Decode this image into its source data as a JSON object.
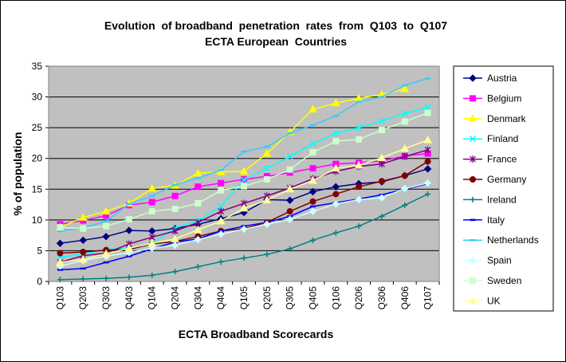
{
  "chart_data": {
    "type": "line",
    "title_line1": "Evolution  of broadband  penetration  rates  from  Q103  to  Q107",
    "title_line2": "ECTA European  Countries",
    "xlabel": "ECTA Broadband Scorecards",
    "ylabel": "% of population",
    "ylim": [
      0,
      35
    ],
    "yticks": [
      0,
      5,
      10,
      15,
      20,
      25,
      30,
      35
    ],
    "grid": "horizontal",
    "plot_background": "#c0c0c0",
    "legend_placement": "right",
    "categories": [
      "Q103",
      "Q203",
      "Q303",
      "Q403",
      "Q104",
      "Q204",
      "Q304",
      "Q404",
      "Q105",
      "Q205",
      "Q305",
      "Q405",
      "Q106",
      "Q206",
      "Q306",
      "Q406",
      "Q107"
    ],
    "series": [
      {
        "name": "Austria",
        "color": "#000080",
        "marker": "diamond",
        "values": [
          6.2,
          6.7,
          7.3,
          8.3,
          8.2,
          8.6,
          9.3,
          10.2,
          11.2,
          13.3,
          13.2,
          14.6,
          15.4,
          15.9,
          16.2,
          17.2,
          18.3
        ]
      },
      {
        "name": "Belgium",
        "color": "#ff00ff",
        "marker": "square",
        "values": [
          9.3,
          9.9,
          10.7,
          12.4,
          12.9,
          13.9,
          15.4,
          16.0,
          16.6,
          17.1,
          17.7,
          18.4,
          19.1,
          19.3,
          19.6,
          20.4,
          20.8
        ]
      },
      {
        "name": "Denmark",
        "color": "#ffff00",
        "marker": "triangle",
        "values": [
          8.8,
          10.4,
          11.4,
          12.7,
          15.1,
          15.6,
          17.6,
          17.8,
          17.9,
          20.8,
          24.3,
          28.0,
          29.0,
          29.8,
          30.4,
          31.3,
          null
        ]
      },
      {
        "name": "Finland",
        "color": "#00ffff",
        "marker": "x",
        "values": [
          3.9,
          4.5,
          5.2,
          5.5,
          6.2,
          8.7,
          9.9,
          12.2,
          16.5,
          18.4,
          20.3,
          22.4,
          24.1,
          25.0,
          26.1,
          27.3,
          28.3
        ]
      },
      {
        "name": "France",
        "color": "#800080",
        "marker": "star",
        "values": [
          3.1,
          4.2,
          4.6,
          6.1,
          7.2,
          8.2,
          9.6,
          11.4,
          12.7,
          13.9,
          15.2,
          16.7,
          17.9,
          18.7,
          19.1,
          20.3,
          21.4
        ]
      },
      {
        "name": "Germany",
        "color": "#800000",
        "marker": "circle",
        "values": [
          4.6,
          4.8,
          5.1,
          5.2,
          6.1,
          6.5,
          7.3,
          8.2,
          8.6,
          9.6,
          11.4,
          13.0,
          14.2,
          15.4,
          16.3,
          17.2,
          19.5
        ]
      },
      {
        "name": "Ireland",
        "color": "#008080",
        "marker": "plus",
        "values": [
          0.3,
          0.4,
          0.5,
          0.7,
          1.0,
          1.6,
          2.4,
          3.2,
          3.8,
          4.4,
          5.3,
          6.7,
          7.9,
          9.0,
          10.6,
          12.4,
          14.2
        ]
      },
      {
        "name": "Italy",
        "color": "#0000ff",
        "marker": "dash",
        "values": [
          1.9,
          2.1,
          3.1,
          4.1,
          5.3,
          6.4,
          6.9,
          8.2,
          9.0,
          9.6,
          10.6,
          12.2,
          12.8,
          13.4,
          14.1,
          15.0,
          15.9
        ]
      },
      {
        "name": "Netherlands",
        "color": "#33ccff",
        "marker": "dash",
        "values": [
          8.2,
          8.7,
          9.8,
          12.6,
          13.9,
          15.7,
          16.8,
          18.1,
          21.1,
          21.9,
          24.1,
          25.4,
          26.9,
          29.2,
          30.0,
          31.9,
          33.0
        ]
      },
      {
        "name": "Spain",
        "color": "#ccffff",
        "marker": "diamond",
        "values": [
          2.5,
          3.4,
          4.1,
          4.7,
          5.4,
          5.9,
          6.8,
          7.7,
          8.5,
          9.3,
          10.1,
          11.4,
          12.6,
          13.3,
          13.6,
          15.1,
          16.0
        ]
      },
      {
        "name": "Sweden",
        "color": "#ccffcc",
        "marker": "square",
        "values": [
          8.8,
          8.6,
          9.0,
          10.1,
          11.4,
          11.8,
          12.7,
          14.8,
          15.5,
          16.6,
          18.2,
          21.0,
          22.8,
          23.1,
          24.6,
          26.0,
          27.4
        ]
      },
      {
        "name": "UK",
        "color": "#ffff99",
        "marker": "triangle",
        "values": [
          3.1,
          3.6,
          4.5,
          5.4,
          6.2,
          6.9,
          8.4,
          9.8,
          11.9,
          13.2,
          15.0,
          16.4,
          18.4,
          18.9,
          20.1,
          21.6,
          23.0
        ]
      }
    ]
  }
}
